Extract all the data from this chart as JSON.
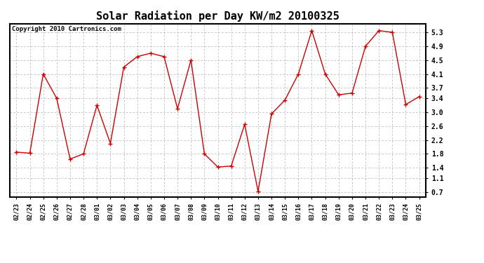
{
  "title": "Solar Radiation per Day KW/m2 20100325",
  "copyright": "Copyright 2010 Cartronics.com",
  "dates": [
    "02/23",
    "02/24",
    "02/25",
    "02/26",
    "02/27",
    "02/28",
    "03/01",
    "03/02",
    "03/03",
    "03/04",
    "03/05",
    "03/06",
    "03/07",
    "03/08",
    "03/09",
    "03/10",
    "03/11",
    "03/12",
    "03/13",
    "03/14",
    "03/15",
    "03/16",
    "03/17",
    "03/18",
    "03/19",
    "03/20",
    "03/21",
    "03/22",
    "03/23",
    "03/24",
    "03/25"
  ],
  "values": [
    1.85,
    1.82,
    4.1,
    3.4,
    1.65,
    1.8,
    3.2,
    2.1,
    4.3,
    4.6,
    4.7,
    4.6,
    3.1,
    4.5,
    1.8,
    1.42,
    1.45,
    2.65,
    0.72,
    2.95,
    3.35,
    4.1,
    5.35,
    4.1,
    3.5,
    3.55,
    4.9,
    5.35,
    5.3,
    3.22,
    3.45
  ],
  "line_color": "#cc0000",
  "marker": "+",
  "marker_size": 5,
  "marker_color": "#cc0000",
  "bg_color": "#ffffff",
  "plot_bg_color": "#ffffff",
  "grid_color": "#b0b0b0",
  "yticks": [
    0.7,
    1.1,
    1.4,
    1.8,
    2.2,
    2.6,
    3.0,
    3.4,
    3.7,
    4.1,
    4.5,
    4.9,
    5.3
  ],
  "ylim": [
    0.55,
    5.55
  ],
  "title_fontsize": 11,
  "copyright_fontsize": 6.5,
  "xtick_fontsize": 6,
  "ytick_fontsize": 7
}
